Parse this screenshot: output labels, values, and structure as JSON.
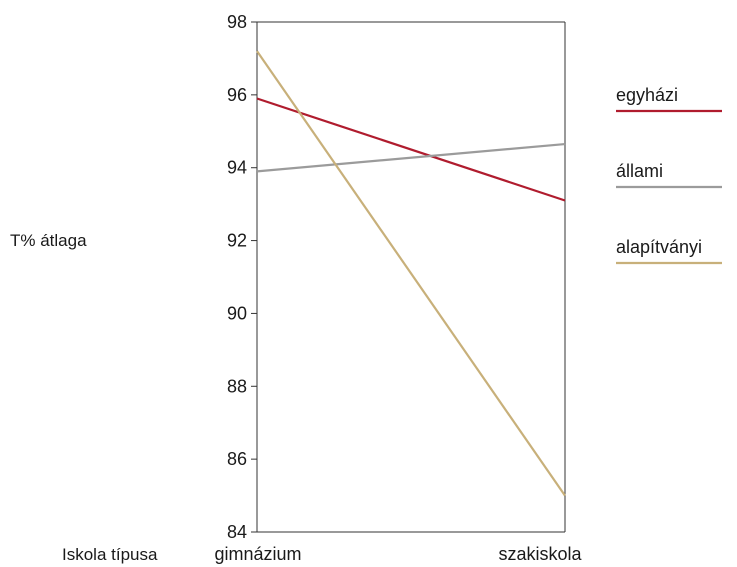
{
  "chart_data": {
    "type": "line",
    "title": "",
    "xlabel": "Iskola típusa",
    "ylabel": "T% átlaga",
    "categories": [
      "gimnázium",
      "szakiskola"
    ],
    "ylim": [
      84,
      98
    ],
    "yticks": [
      84,
      86,
      88,
      90,
      92,
      94,
      96,
      98
    ],
    "grid": false,
    "legend_position": "right",
    "series": [
      {
        "name": "egyházi",
        "color": "#b01c2e",
        "values": [
          95.9,
          93.1
        ]
      },
      {
        "name": "állami",
        "color": "#9b9b9b",
        "values": [
          93.9,
          94.65
        ]
      },
      {
        "name": "alapítványi",
        "color": "#c8b07a",
        "values": [
          97.2,
          85.0
        ]
      }
    ]
  }
}
